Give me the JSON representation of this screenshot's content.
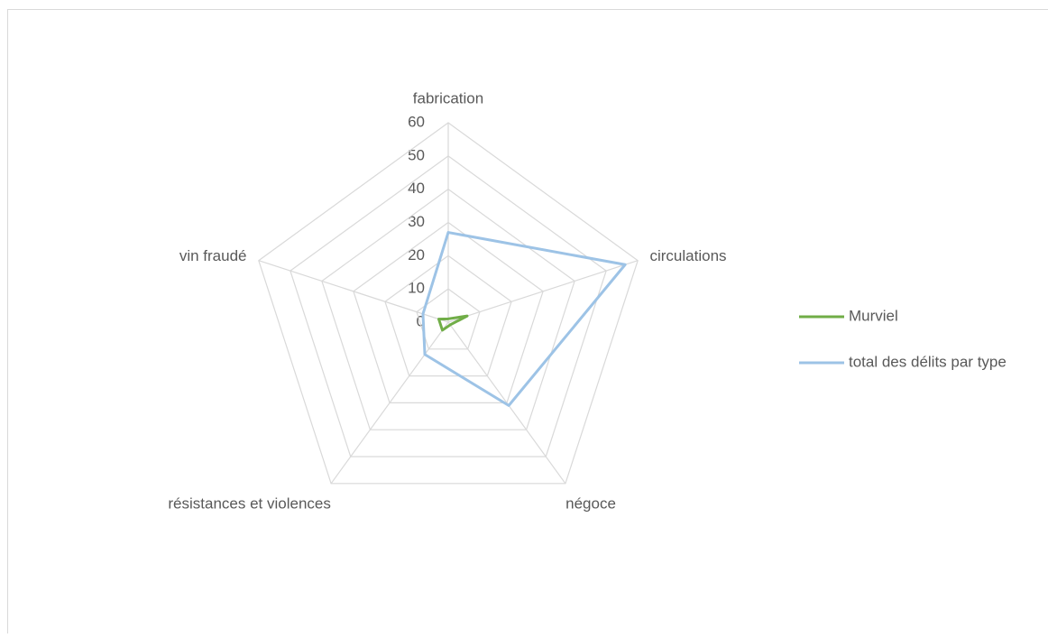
{
  "chart_data": {
    "type": "radar",
    "categories": [
      "fabrication",
      "circulations",
      "négoce",
      "résistances et violences",
      "vin fraudé"
    ],
    "series": [
      {
        "name": "Murviel",
        "color": "#70ad47",
        "values": [
          1,
          6,
          1,
          3,
          3
        ]
      },
      {
        "name": "total des délits par type",
        "color": "#9dc3e6",
        "values": [
          27,
          56,
          31,
          12,
          8
        ]
      }
    ],
    "ylim": [
      0,
      60
    ],
    "yticks": [
      0,
      10,
      20,
      30,
      40,
      50,
      60
    ],
    "grid": true,
    "legend": "right"
  }
}
